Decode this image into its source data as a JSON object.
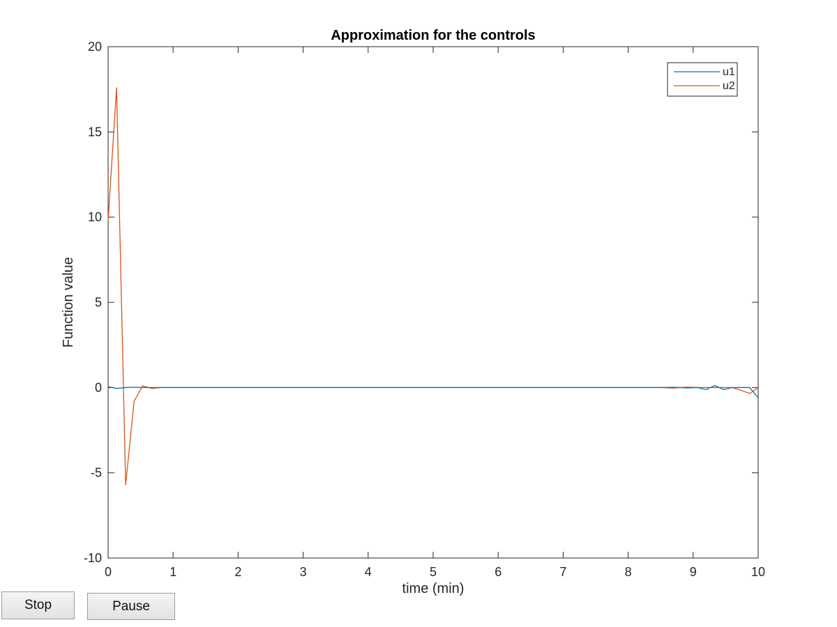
{
  "controls": {
    "stop_label": "Stop",
    "pause_label": "Pause"
  },
  "chart_data": {
    "type": "line",
    "title": "Approximation for the controls",
    "xlabel": "time (min)",
    "ylabel": "Function value",
    "xlim": [
      0,
      10
    ],
    "ylim": [
      -10,
      20
    ],
    "xticks": [
      0,
      1,
      2,
      3,
      4,
      5,
      6,
      7,
      8,
      9,
      10
    ],
    "yticks": [
      -10,
      -5,
      0,
      5,
      10,
      15,
      20
    ],
    "grid": false,
    "legend_position": "top-right",
    "series": [
      {
        "name": "u1",
        "color": "#0072BD",
        "x": [
          0,
          0.13,
          0.27,
          0.4,
          0.53,
          0.67,
          0.8,
          1.0,
          2.0,
          3.0,
          4.0,
          5.0,
          6.0,
          7.0,
          8.0,
          8.5,
          8.7,
          8.9,
          9.07,
          9.2,
          9.33,
          9.47,
          9.6,
          9.73,
          9.87,
          10.0
        ],
        "values": [
          0.05,
          -0.05,
          0.0,
          0.02,
          0.0,
          0.0,
          0.0,
          0.0,
          0.0,
          0.0,
          0.0,
          0.0,
          0.0,
          0.0,
          0.0,
          0.0,
          0.02,
          -0.02,
          0.0,
          -0.12,
          0.12,
          -0.12,
          0.0,
          0.0,
          0.0,
          -0.6
        ]
      },
      {
        "name": "u2",
        "color": "#D95319",
        "x": [
          0,
          0.13,
          0.27,
          0.4,
          0.53,
          0.67,
          0.8,
          1.0,
          2.0,
          3.0,
          4.0,
          5.0,
          6.0,
          7.0,
          8.0,
          8.5,
          8.7,
          8.9,
          9.07,
          9.2,
          9.33,
          9.47,
          9.6,
          9.73,
          9.87,
          10.0
        ],
        "values": [
          9.8,
          17.6,
          -5.7,
          -0.8,
          0.1,
          -0.05,
          0.0,
          0.0,
          0.0,
          0.0,
          0.0,
          0.0,
          0.0,
          0.0,
          0.0,
          0.0,
          -0.03,
          0.03,
          0.0,
          0.0,
          0.0,
          0.0,
          0.0,
          -0.15,
          -0.35,
          0.0
        ]
      }
    ]
  }
}
